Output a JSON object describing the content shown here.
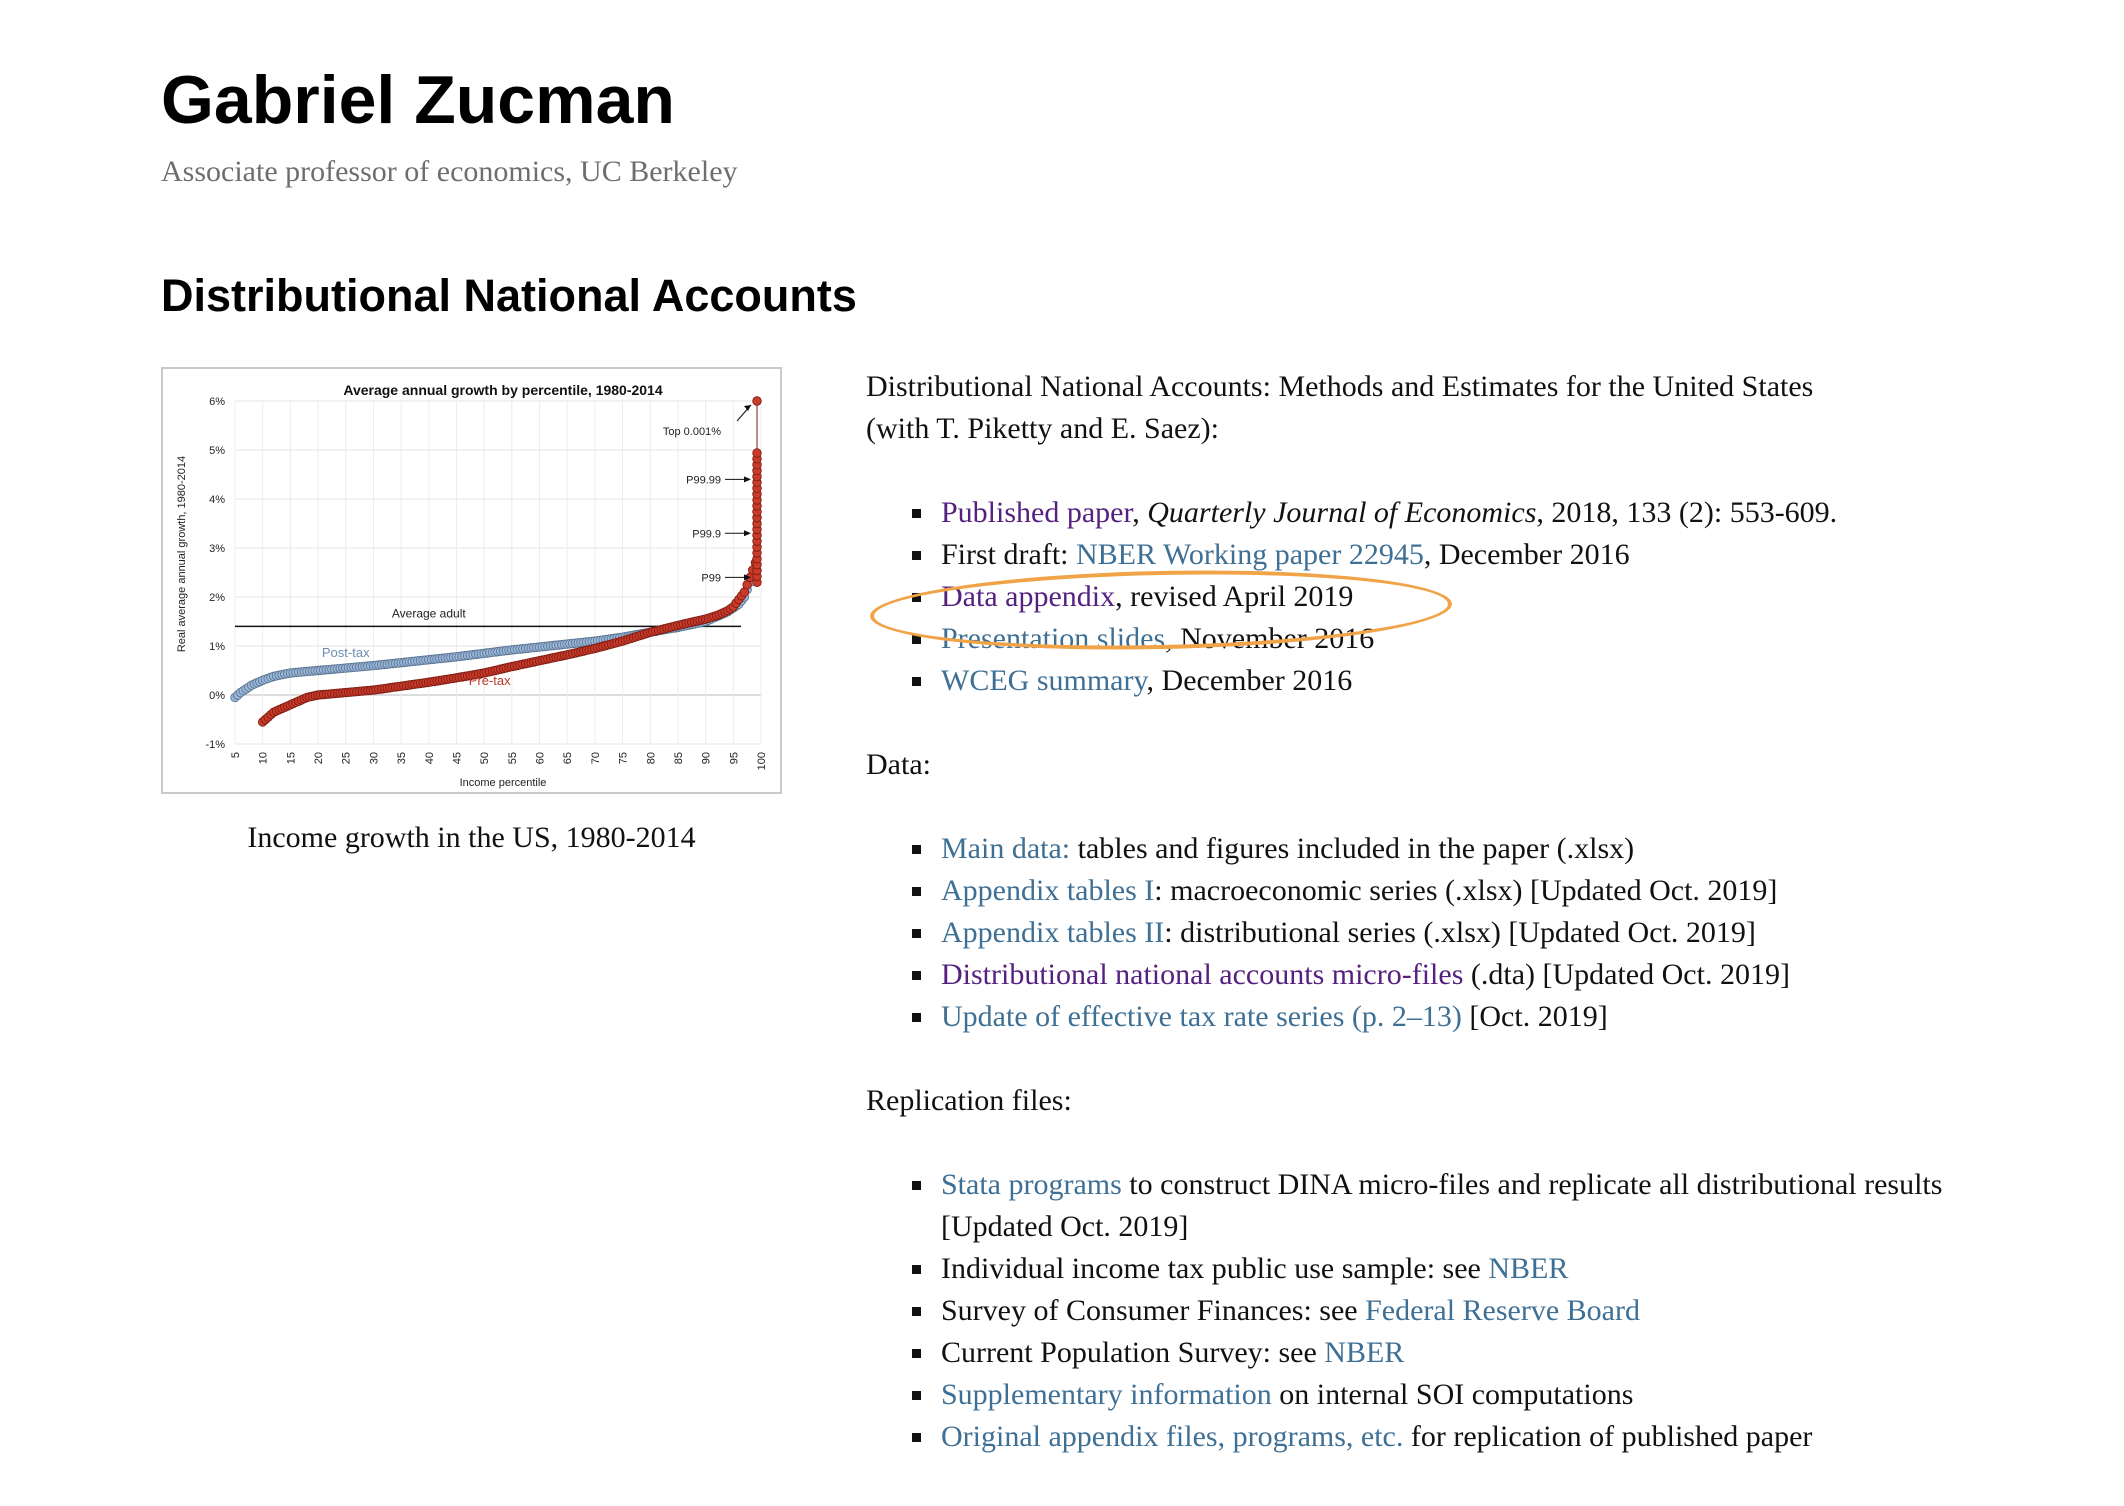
{
  "header": {
    "name": "Gabriel Zucman",
    "subtitle": "Associate professor of economics, UC Berkeley"
  },
  "section": {
    "title": "Distributional National Accounts"
  },
  "figure": {
    "caption": "Income growth in the US, 1980-2014"
  },
  "chart_data": {
    "type": "scatter",
    "title": "Average annual growth by percentile, 1980-2014",
    "xlabel": "Income percentile",
    "ylabel": "Real average annual growth, 1980-2014",
    "x_ticks": [
      "5",
      "10",
      "15",
      "20",
      "25",
      "30",
      "35",
      "40",
      "45",
      "50",
      "55",
      "60",
      "65",
      "70",
      "75",
      "80",
      "85",
      "90",
      "95",
      "100"
    ],
    "y_ticks": [
      "6%",
      "5%",
      "4%",
      "3%",
      "2%",
      "1%",
      "0%",
      "-1%"
    ],
    "ylim": [
      -1,
      6
    ],
    "xlim": [
      5,
      100
    ],
    "grid": true,
    "reference_line": {
      "label": "Average adult",
      "value": 1.4
    },
    "series": [
      {
        "name": "Post-tax",
        "color": "#9bb6d6",
        "x": [
          5,
          6,
          8,
          10,
          12,
          15,
          20,
          25,
          30,
          35,
          40,
          45,
          50,
          55,
          60,
          65,
          70,
          75,
          80,
          85,
          88,
          90,
          92,
          94,
          96,
          97,
          98,
          99
        ],
        "y": [
          -0.05,
          0.05,
          0.2,
          0.3,
          0.38,
          0.45,
          0.5,
          0.55,
          0.6,
          0.66,
          0.72,
          0.78,
          0.85,
          0.92,
          0.98,
          1.04,
          1.1,
          1.18,
          1.28,
          1.38,
          1.45,
          1.5,
          1.6,
          1.7,
          1.85,
          2.0,
          2.3,
          2.6
        ]
      },
      {
        "name": "Pre-tax",
        "color": "#c83a2a",
        "x": [
          10,
          12,
          15,
          18,
          20,
          25,
          30,
          35,
          40,
          45,
          50,
          55,
          60,
          65,
          70,
          75,
          80,
          85,
          88,
          90,
          92,
          94,
          95,
          96,
          97,
          98,
          99
        ],
        "y": [
          -0.55,
          -0.35,
          -0.2,
          -0.05,
          0.0,
          0.05,
          0.1,
          0.18,
          0.26,
          0.35,
          0.45,
          0.58,
          0.7,
          0.82,
          0.95,
          1.1,
          1.28,
          1.42,
          1.5,
          1.55,
          1.62,
          1.72,
          1.8,
          1.95,
          2.1,
          2.4,
          2.7
        ]
      }
    ],
    "top_points": {
      "x": 100,
      "y": [
        2.3,
        2.5,
        2.8,
        3.1,
        3.4,
        3.7,
        4.0,
        4.3,
        4.6,
        4.9,
        6.0
      ]
    },
    "annotations": [
      {
        "label": "Top 0.001%",
        "y": 6.0
      },
      {
        "label": "P99.99",
        "y": 4.4
      },
      {
        "label": "P99.9",
        "y": 3.3
      },
      {
        "label": "P99",
        "y": 2.4
      }
    ]
  },
  "intro": {
    "line1": "Distributional National Accounts: Methods and Estimates for the United States",
    "line2": "(with T. Piketty and E. Saez):"
  },
  "papers": {
    "item1": {
      "link": "Published paper",
      "sep": ", ",
      "journal": "Quarterly Journal of Economics",
      "rest": ", 2018, 133 (2): 553-609."
    },
    "item2": {
      "pre": "First draft: ",
      "link": "NBER Working paper 22945",
      "rest": ", December 2016"
    },
    "item3": {
      "link": "Data appendix",
      "rest": ", revised April 2019"
    },
    "item4": {
      "link": "Presentation slides",
      "rest": ", November 2016"
    },
    "item5": {
      "link": "WCEG summary",
      "rest": ", December 2016"
    }
  },
  "data_section": {
    "label": "Data:",
    "item1": {
      "link": "Main data:",
      "rest": " tables and figures included in the paper (.xlsx)"
    },
    "item2": {
      "link": "Appendix tables I",
      "rest": ": macroeconomic series (.xlsx) [Updated Oct. 2019]"
    },
    "item3": {
      "link": "Appendix tables II",
      "rest": ": distributional series (.xlsx) [Updated Oct. 2019]"
    },
    "item4": {
      "link": "Distributional national accounts micro-files",
      "rest": " (.dta) [Updated Oct. 2019]"
    },
    "item5": {
      "link": "Update of effective tax rate series (p. 2–13)",
      "rest": " [Oct. 2019]"
    }
  },
  "replication": {
    "label": "Replication files:",
    "item1": {
      "link": "Stata programs",
      "rest": " to construct DINA micro-files and replicate all distributional results",
      "rest2": "[Updated Oct. 2019]"
    },
    "item2": {
      "pre": "Individual income tax public use sample: see ",
      "link": "NBER"
    },
    "item3": {
      "pre": "Survey of Consumer Finances: see ",
      "link": "Federal Reserve Board"
    },
    "item4": {
      "pre": "Current Population Survey: see ",
      "link": "NBER"
    },
    "item5": {
      "link": "Supplementary information",
      "rest": " on internal SOI computations"
    },
    "item6": {
      "link": "Original appendix files, programs, etc.",
      "rest": " for replication of published paper"
    }
  },
  "colors": {
    "link": "#3e6f94",
    "visited_link": "#55207f",
    "highlight": "#f1a348"
  }
}
